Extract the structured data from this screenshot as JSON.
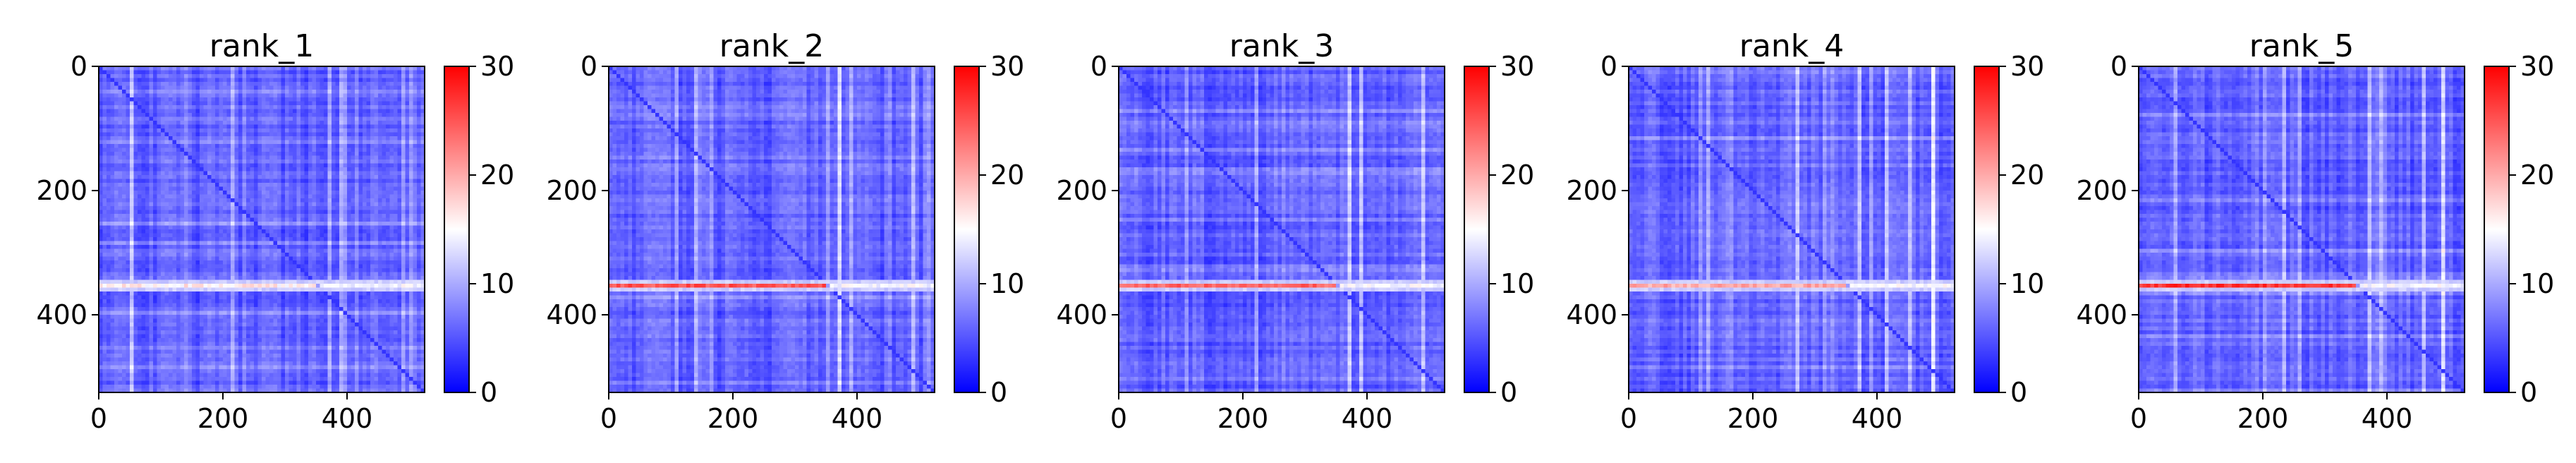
{
  "chart_data": {
    "type": "heatmap",
    "colormap": "bwr",
    "colormap_colors": [
      "#0000ff",
      "#ffffff",
      "#ff0000"
    ],
    "vmin": 0,
    "vmax": 30,
    "colorbar_ticks": [
      0,
      10,
      20,
      30
    ],
    "xlim": [
      0,
      525
    ],
    "ylim": [
      525,
      0
    ],
    "xticks": [
      0,
      200,
      400
    ],
    "yticks": [
      0,
      200,
      400
    ],
    "panels": [
      {
        "title": "rank_1",
        "hot_row": 350,
        "hot_row_peak": 17,
        "diagonal_value": 3
      },
      {
        "title": "rank_2",
        "hot_row": 350,
        "hot_row_peak": 26,
        "diagonal_value": 3
      },
      {
        "title": "rank_3",
        "hot_row": 350,
        "hot_row_peak": 25,
        "diagonal_value": 3
      },
      {
        "title": "rank_4",
        "hot_row": 350,
        "hot_row_peak": 21,
        "diagonal_value": 3
      },
      {
        "title": "rank_5",
        "hot_row": 350,
        "hot_row_peak": 28,
        "diagonal_value": 3
      }
    ]
  }
}
